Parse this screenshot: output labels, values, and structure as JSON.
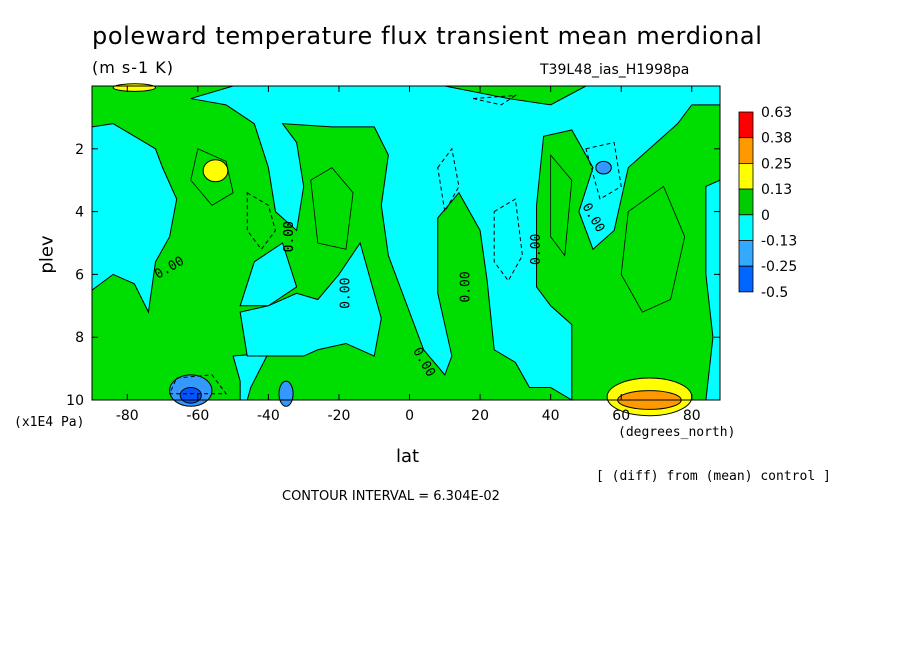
{
  "chart_data": {
    "type": "heatmap",
    "title": "poleward temperature flux transient mean merdional",
    "units": "(m s-1 K)",
    "run_id": "T39L48_ias_H1998pa",
    "xlabel": "lat",
    "ylabel": "plev",
    "x_unit_label": "(degrees_north)",
    "y_unit_label": "(x1E4 Pa)",
    "xlim": [
      -90,
      88
    ],
    "ylim": [
      10,
      0
    ],
    "x_ticks": [
      "-80",
      "-60",
      "-40",
      "-20",
      "0",
      "20",
      "40",
      "60",
      "80"
    ],
    "x_tick_values": [
      -80,
      -60,
      -40,
      -20,
      0,
      20,
      40,
      60,
      80
    ],
    "y_ticks": [
      "2",
      "4",
      "6",
      "8",
      "10"
    ],
    "y_tick_values": [
      2,
      4,
      6,
      8,
      10
    ],
    "note": "[ (diff) from (mean) control ]",
    "contour_interval": "CONTOUR INTERVAL = 6.304E-02",
    "contour_labels": [
      "0.00",
      "0.00",
      "0.00",
      "0.00",
      "0.00",
      "0.00",
      "0.00",
      "0.00"
    ],
    "legend": {
      "levels": [
        "0.63",
        "0.38",
        "0.25",
        "0.13",
        "0",
        "-0.13",
        "-0.25",
        "-0.5"
      ],
      "colors": [
        "#ff0000",
        "#ff9900",
        "#ffff00",
        "#00cc00",
        "#00ffff",
        "#33aaff",
        "#0066ff"
      ]
    },
    "colors": {
      "positive": "#00dd00",
      "negative": "#00ffff",
      "strong_negative": "#3399ff",
      "strongest_negative": "#0055ff",
      "weak_positive": "#ffff00",
      "mid_positive": "#ff9900"
    }
  }
}
